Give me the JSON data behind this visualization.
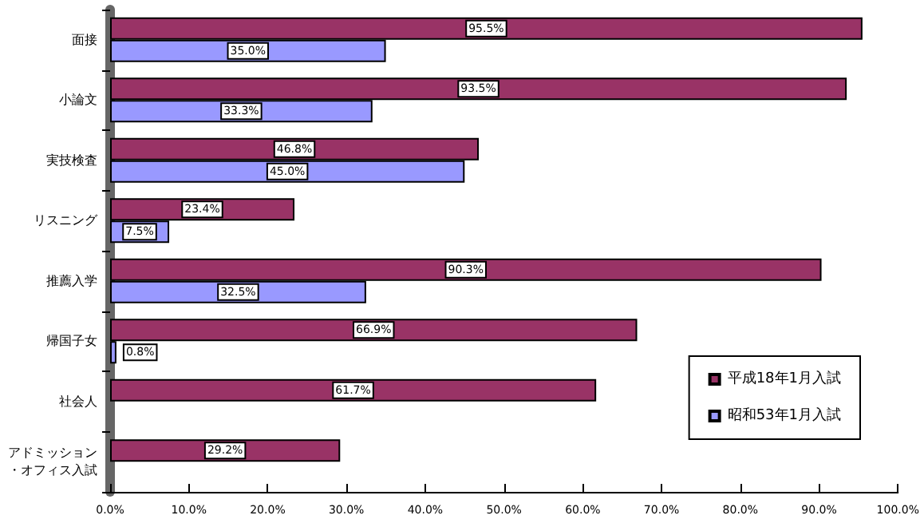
{
  "chart_data": {
    "type": "bar",
    "orientation": "horizontal",
    "categories": [
      "面接",
      "小論文",
      "実技検査",
      "リスニング",
      "推薦入学",
      "帰国子女",
      "社会人",
      "アドミッション・オフィス入試"
    ],
    "series": [
      {
        "name": "平成18年1月入試",
        "color": "#993366",
        "values": [
          95.5,
          93.5,
          46.8,
          23.4,
          90.3,
          66.9,
          61.7,
          29.2
        ],
        "value_labels": [
          "95.5%",
          "93.5%",
          "46.8%",
          "23.4%",
          "90.3%",
          "66.9%",
          "61.7%",
          "29.2%"
        ]
      },
      {
        "name": "昭和53年1月入試",
        "color": "#9999ff",
        "values": [
          35.0,
          33.3,
          45.0,
          7.5,
          32.5,
          0.8,
          null,
          null
        ],
        "value_labels": [
          "35.0%",
          "33.3%",
          "45.0%",
          "7.5%",
          "32.5%",
          "0.8%",
          null,
          null
        ]
      }
    ],
    "xlim": [
      0,
      100
    ],
    "xticks": [
      {
        "value": 0,
        "label": "0.0%"
      },
      {
        "value": 10,
        "label": "10.0%"
      },
      {
        "value": 20,
        "label": "20.0%"
      },
      {
        "value": 30,
        "label": "30.0%"
      },
      {
        "value": 40,
        "label": "40.0%"
      },
      {
        "value": 50,
        "label": "50.0%"
      },
      {
        "value": 60,
        "label": "60.0%"
      },
      {
        "value": 70,
        "label": "70.0%"
      },
      {
        "value": 80,
        "label": "80.0%"
      },
      {
        "value": 90,
        "label": "90.0%"
      },
      {
        "value": 100,
        "label": "100.0%"
      }
    ],
    "grid": false,
    "legend": "bottom right"
  }
}
